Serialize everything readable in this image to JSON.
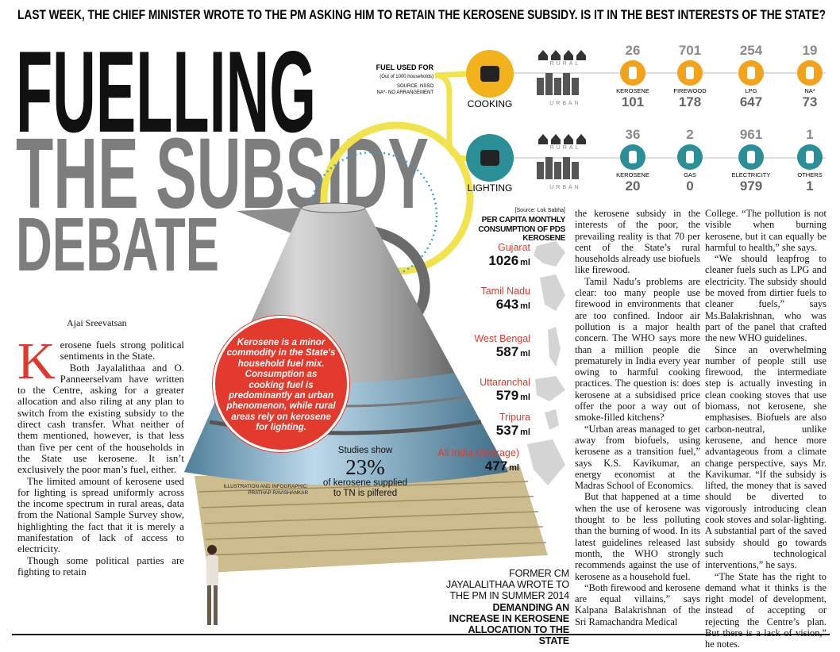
{
  "header": {
    "kicker": "LAST WEEK, THE CHIEF MINISTER WROTE TO THE PM ASKING HIM TO RETAIN THE KEROSENE SUBSIDY. IS IT IN THE BEST INTERESTS OF THE STATE?",
    "title_lines": [
      "FUELLING",
      "THE SUBSIDY",
      "DEBATE"
    ]
  },
  "fuel_panel": {
    "title": "FUEL USED FOR",
    "subtitle": "(Out of 1000 households)",
    "source": "SOURCE: NSSO",
    "note": "NA*- NO ARRANGEMENT",
    "rural_label": "RURAL",
    "urban_label": "URBAN",
    "uses": [
      {
        "name": "COOKING",
        "fuels": [
          {
            "label": "KEROSENE",
            "rural": "26",
            "urban": "101"
          },
          {
            "label": "FIREWOOD",
            "rural": "701",
            "urban": "178"
          },
          {
            "label": "LPG",
            "rural": "254",
            "urban": "647"
          },
          {
            "label": "NA*",
            "rural": "19",
            "urban": "73"
          }
        ]
      },
      {
        "name": "LIGHTING",
        "fuels": [
          {
            "label": "KEROSENE",
            "rural": "36",
            "urban": "20"
          },
          {
            "label": "GAS",
            "rural": "2",
            "urban": "0"
          },
          {
            "label": "ELECTRICITY",
            "rural": "961",
            "urban": "979"
          },
          {
            "label": "OTHERS",
            "rural": "1",
            "urban": "1"
          }
        ]
      }
    ]
  },
  "consumption": {
    "source": "[Source: Lok Sabha]",
    "title": "PER CAPITA MONTHLY CONSUMPTION OF PDS KEROSENE",
    "unit": "ml",
    "states": [
      {
        "name": "Gujarat",
        "value": "1026"
      },
      {
        "name": "Tamil Nadu",
        "value": "643"
      },
      {
        "name": "West Bengal",
        "value": "587"
      },
      {
        "name": "Uttaranchal",
        "value": "579"
      },
      {
        "name": "Tripura",
        "value": "537"
      },
      {
        "name": "All India (Average)",
        "value": "477"
      }
    ]
  },
  "callout": "Kerosene is a minor commodity in the State's household fuel mix. Consumption as cooking fuel is predominantly an urban phenomenon, while rural areas rely on kerosene for lighting.",
  "stat": {
    "lead": "Studies show",
    "figure": "23%",
    "tail": "of kerosene supplied to TN is pilfered"
  },
  "credit": "ILLUSTRATION AND INFOGRAPHIC: PRATHAP RAVISHANKAR",
  "byline": "Ajai Sreevatsan",
  "pull_quote": {
    "plain": "FORMER CM JAYALALITHAA WROTE TO THE PM IN SUMMER 2014",
    "bold": "DEMANDING AN INCREASE IN KEROSENE ALLOCATION TO THE STATE"
  },
  "article": {
    "drop_cap": "K",
    "columns": [
      [
        "erosene fuels strong political sentiments in the State.",
        "Both Jayalalithaa and O. Panneerselvam have written to the Centre, asking for a greater allocation and also riling at any plan to switch from the existing subsidy to the direct cash transfer. What neither of them mentioned, however, is that less than five per cent of the households in the State use kerosene. It isn’t exclusively the poor man’s fuel, either.",
        "The limited amount of kerosene used for lighting is spread uniformly across the income spectrum in rural areas, data from the National Sample Survey show, highlighting the fact that it is merely a manifestation of lack of access to electricity.",
        "Though some political parties are fighting to retain"
      ],
      [
        "the kerosene subsidy in the interests of the poor, the prevailing reality is that 70 per cent of the State’s rural households already use biofuels like firewood.",
        "Tamil Nadu’s problems are clear: too many people use firewood in environments that are too confined. Indoor air pollution is a major health concern. The WHO says more than a million people die prematurely in India every year owing to harmful cooking practices. The question is: does kerosene at a subsidised price offer the poor a way out of smoke-filled kitchens?",
        "“Urban areas managed to get away from biofuels, using kerosene as a transition fuel,” says K.S. Kavikumar, an energy economist at the Madras School of Economics.",
        "But that happened at a time when the use of kerosene was thought to be less polluting than the burning of wood. In its latest guidelines released last month, the WHO strongly recommends against the use of kerosene as a household fuel.",
        "“Both firewood and kerosene are equal villains,” says Kalpana Balakrishnan of the Sri Ramachandra Medical"
      ],
      [
        "College. “The pollution is not visible when burning kerosene, but it can equally be harmful to health,” she says.",
        "“We should leapfrog to cleaner fuels such as LPG and electricity. The subsidy should be moved from dirtier fuels to cleaner fuels,” says Ms.Balakrishnan, who was part of the panel that crafted the new WHO guidelines.",
        "Since an overwhelming number of people still use firewood, the intermediate step is actually investing in clean cooking stoves that use biomass, not kerosene, she emphasises. Biofuels are also carbon-neutral, unlike kerosene, and hence more advantageous from a climate change perspective, says Mr. Kavikumar. “If the subsidy is lifted, the money that is saved should be diverted to vigorously introducing clean cook stoves and solar-lighting. A substantial part of the saved subsidy should go towards such technological interventions,” he says.",
        "“The State has the right to demand what it thinks is the right model of development, instead of accepting or rejecting the Centre’s plan. But there is a lack of vision,” he notes."
      ]
    ]
  }
}
